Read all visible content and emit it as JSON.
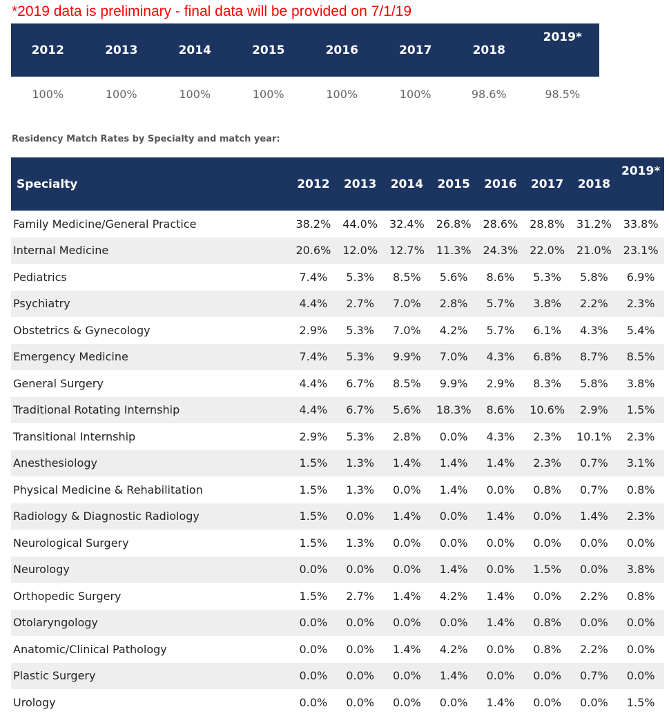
{
  "note": "*2019 data is preliminary - final data will be provided on 7/1/19",
  "overall": {
    "years": [
      "2012",
      "2013",
      "2014",
      "2015",
      "2016",
      "2017",
      "2018",
      "2019*"
    ],
    "values": [
      "100%",
      "100%",
      "100%",
      "100%",
      "100%",
      "100%",
      "98.6%",
      "98.5%"
    ]
  },
  "specialty_table": {
    "title": "Residency Match Rates by Specialty and match year:",
    "headers": [
      "Specialty",
      "2012",
      "2013",
      "2014",
      "2015",
      "2016",
      "2017",
      "2018",
      "2019*"
    ],
    "rows": [
      [
        "Family Medicine/General Practice",
        "38.2%",
        "44.0%",
        "32.4%",
        "26.8%",
        "28.6%",
        "28.8%",
        "31.2%",
        "33.8%"
      ],
      [
        "Internal Medicine",
        "20.6%",
        "12.0%",
        "12.7%",
        "11.3%",
        "24.3%",
        "22.0%",
        "21.0%",
        "23.1%"
      ],
      [
        "Pediatrics",
        "7.4%",
        "5.3%",
        "8.5%",
        "5.6%",
        "8.6%",
        "5.3%",
        "5.8%",
        "6.9%"
      ],
      [
        "Psychiatry",
        "4.4%",
        "2.7%",
        "7.0%",
        "2.8%",
        "5.7%",
        "3.8%",
        "2.2%",
        "2.3%"
      ],
      [
        "Obstetrics & Gynecology",
        "2.9%",
        "5.3%",
        "7.0%",
        "4.2%",
        "5.7%",
        "6.1%",
        "4.3%",
        "5.4%"
      ],
      [
        "Emergency Medicine",
        "7.4%",
        "5.3%",
        "9.9%",
        "7.0%",
        "4.3%",
        "6.8%",
        "8.7%",
        "8.5%"
      ],
      [
        "General Surgery",
        "4.4%",
        "6.7%",
        "8.5%",
        "9.9%",
        "2.9%",
        "8.3%",
        "5.8%",
        "3.8%"
      ],
      [
        "Traditional Rotating Internship",
        "4.4%",
        "6.7%",
        "5.6%",
        "18.3%",
        "8.6%",
        "10.6%",
        "2.9%",
        "1.5%"
      ],
      [
        "Transitional Internship",
        "2.9%",
        "5.3%",
        "2.8%",
        "0.0%",
        "4.3%",
        "2.3%",
        "10.1%",
        "2.3%"
      ],
      [
        "Anesthesiology",
        "1.5%",
        "1.3%",
        "1.4%",
        "1.4%",
        "1.4%",
        "2.3%",
        "0.7%",
        "3.1%"
      ],
      [
        "Physical Medicine & Rehabilitation",
        "1.5%",
        "1.3%",
        "0.0%",
        "1.4%",
        "0.0%",
        "0.8%",
        "0.7%",
        "0.8%"
      ],
      [
        "Radiology & Diagnostic Radiology",
        "1.5%",
        "0.0%",
        "1.4%",
        "0.0%",
        "1.4%",
        "0.0%",
        "1.4%",
        "2.3%"
      ],
      [
        "Neurological Surgery",
        "1.5%",
        "1.3%",
        "0.0%",
        "0.0%",
        "0.0%",
        "0.0%",
        "0.0%",
        "0.0%"
      ],
      [
        "Neurology",
        "0.0%",
        "0.0%",
        "0.0%",
        "1.4%",
        "0.0%",
        "1.5%",
        "0.0%",
        "3.8%"
      ],
      [
        "Orthopedic Surgery",
        "1.5%",
        "2.7%",
        "1.4%",
        "4.2%",
        "1.4%",
        "0.0%",
        "2.2%",
        "0.8%"
      ],
      [
        "Otolaryngology",
        "0.0%",
        "0.0%",
        "0.0%",
        "0.0%",
        "1.4%",
        "0.8%",
        "0.0%",
        "0.0%"
      ],
      [
        "Anatomic/Clinical Pathology",
        "0.0%",
        "0.0%",
        "1.4%",
        "4.2%",
        "0.0%",
        "0.8%",
        "2.2%",
        "0.0%"
      ],
      [
        "Plastic Surgery",
        "0.0%",
        "0.0%",
        "0.0%",
        "1.4%",
        "0.0%",
        "0.0%",
        "0.7%",
        "0.0%"
      ],
      [
        "Urology",
        "0.0%",
        "0.0%",
        "0.0%",
        "0.0%",
        "1.4%",
        "0.0%",
        "0.0%",
        "1.5%"
      ]
    ]
  }
}
